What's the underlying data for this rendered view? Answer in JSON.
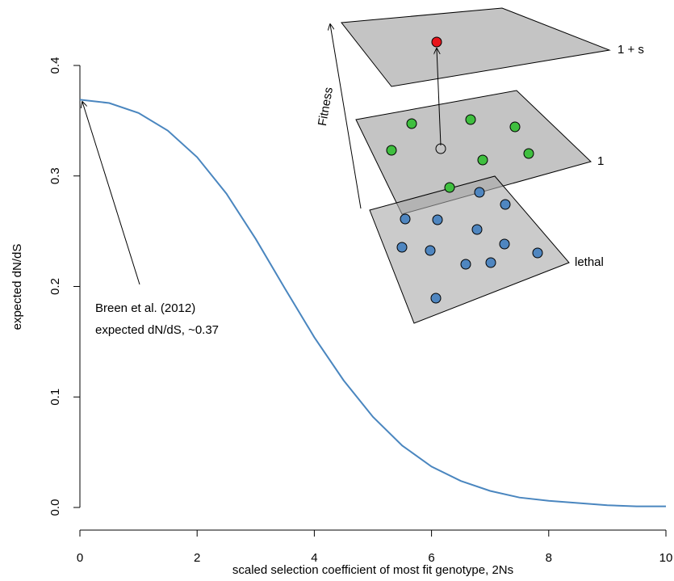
{
  "chart_data": {
    "type": "line",
    "x_label": "scaled selection coefficient of most fit genotype, 2Ns",
    "y_label": "expected dN/dS",
    "x": [
      0,
      0.5,
      1,
      1.5,
      2,
      2.5,
      3,
      3.5,
      4,
      4.5,
      5,
      5.5,
      6,
      6.5,
      7,
      7.5,
      8,
      8.5,
      9,
      9.5,
      10
    ],
    "series": [
      {
        "color": "#4a86bf",
        "values": [
          0.369,
          0.366,
          0.357,
          0.341,
          0.317,
          0.284,
          0.243,
          0.198,
          0.154,
          0.115,
          0.082,
          0.056,
          0.037,
          0.024,
          0.015,
          0.009,
          0.006,
          0.004,
          0.002,
          0.001,
          0.001
        ]
      }
    ],
    "xlim": [
      0,
      10
    ],
    "ylim": [
      0,
      0.4
    ],
    "xticks": [
      0,
      2,
      4,
      6,
      8,
      10
    ],
    "yticks": [
      {
        "value": 0,
        "label": "0.0"
      },
      0.1,
      0.2,
      0.3,
      0.4
    ],
    "annotations": [
      "Breen et al. (2012)",
      "expected dN/dS, ~0.37"
    ],
    "inset": {
      "levels": [
        "1 + s",
        "1",
        "lethal"
      ],
      "axis_label": "Fitness"
    }
  }
}
